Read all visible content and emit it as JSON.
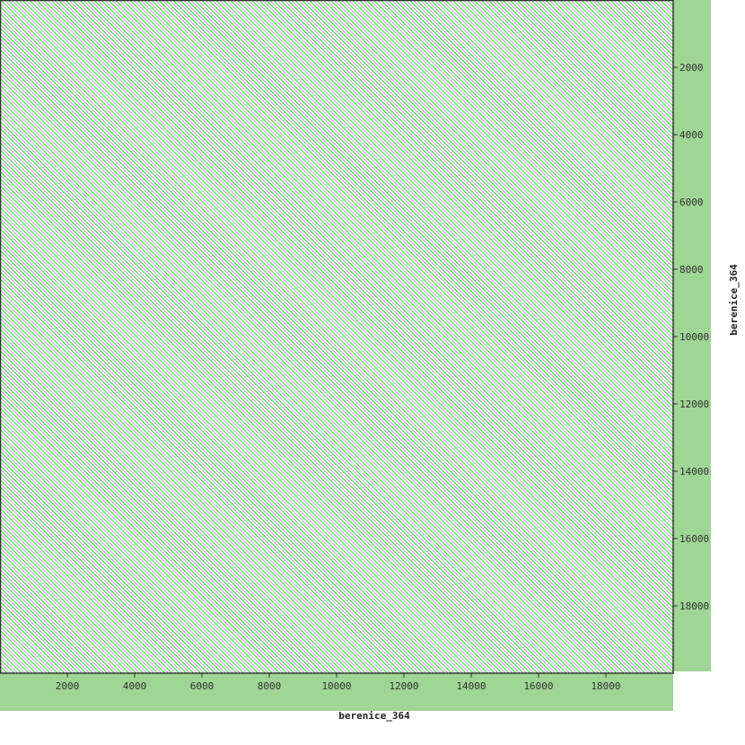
{
  "chart_data": {
    "type": "scatter",
    "subtype": "dot-plot self-alignment",
    "xlabel": "berenice_364",
    "ylabel": "berenice_364",
    "xlim": [
      0,
      20000
    ],
    "ylim": [
      0,
      20000
    ],
    "y_direction": "top-to-bottom",
    "x_ticks": [
      2000,
      4000,
      6000,
      8000,
      10000,
      12000,
      14000,
      16000,
      18000
    ],
    "y_ticks": [
      2000,
      4000,
      6000,
      8000,
      10000,
      12000,
      14000,
      16000,
      18000
    ],
    "diagonal_repeat_period": 213,
    "grid": false,
    "colors": {
      "match": "#22e622",
      "match_faint": "#c8a0d8",
      "axis_band": "#9fd595",
      "axis": "#333333"
    }
  }
}
